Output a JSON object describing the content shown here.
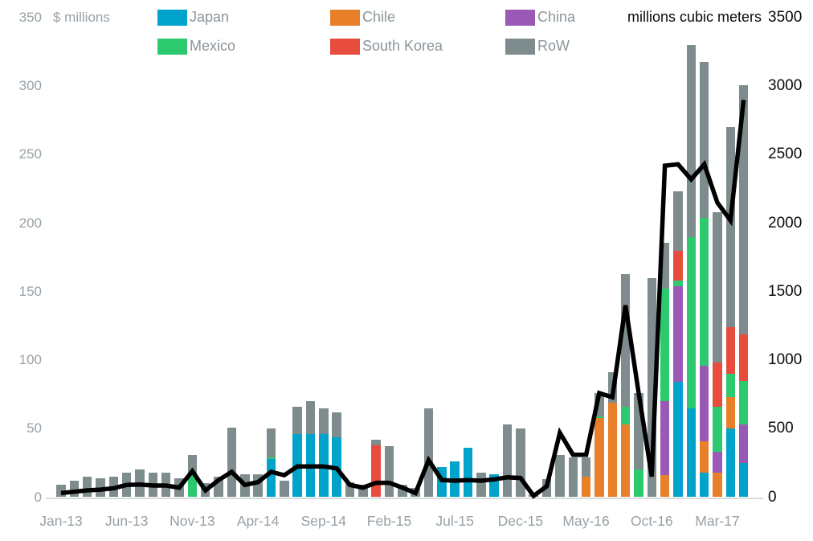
{
  "chart_data": {
    "type": "combo-stacked-bar-line",
    "left_axis": {
      "label": "$ millions",
      "min": 0,
      "max": 350,
      "tick_step": 50
    },
    "right_axis": {
      "label": "millions cubic meters",
      "min": 0,
      "max": 3500,
      "tick_step": 500
    },
    "series_order": [
      "japan",
      "chile",
      "china",
      "mexico",
      "south_korea",
      "row"
    ],
    "legend": [
      {
        "id": "japan",
        "label": "Japan",
        "color": "#00a3c9"
      },
      {
        "id": "chile",
        "label": "Chile",
        "color": "#e8802a"
      },
      {
        "id": "china",
        "label": "China",
        "color": "#9b59b6"
      },
      {
        "id": "mexico",
        "label": "Mexico",
        "color": "#2dc96e"
      },
      {
        "id": "south_korea",
        "label": "South Korea",
        "color": "#e74c3c"
      },
      {
        "id": "row",
        "label": "RoW",
        "color": "#7f8c8d"
      }
    ],
    "line_series": {
      "name": "volume",
      "axis": "right",
      "color": "#000000"
    },
    "x_tick_labels": [
      "Jan-13",
      "Jun-13",
      "Nov-13",
      "Apr-14",
      "Sep-14",
      "Feb-15",
      "Jul-15",
      "Dec-15",
      "May-16",
      "Oct-16",
      "Mar-17"
    ],
    "months": [
      {
        "label": "Jan-13",
        "row": 9,
        "line": 30
      },
      {
        "label": "Feb-13",
        "row": 12,
        "line": 40
      },
      {
        "label": "Mar-13",
        "row": 15,
        "line": 50
      },
      {
        "label": "Apr-13",
        "row": 14,
        "line": 55
      },
      {
        "label": "May-13",
        "row": 15,
        "line": 65
      },
      {
        "label": "Jun-13",
        "row": 18,
        "line": 90
      },
      {
        "label": "Jul-13",
        "row": 20,
        "line": 92
      },
      {
        "label": "Aug-13",
        "row": 18,
        "line": 85
      },
      {
        "label": "Sep-13",
        "row": 18,
        "line": 85
      },
      {
        "label": "Oct-13",
        "row": 14,
        "line": 70
      },
      {
        "label": "Nov-13",
        "mexico": 18,
        "row": 13,
        "line": 190
      },
      {
        "label": "Dec-13",
        "row": 10,
        "line": 50
      },
      {
        "label": "Jan-14",
        "row": 15,
        "line": 125
      },
      {
        "label": "Feb-14",
        "row": 51,
        "line": 185
      },
      {
        "label": "Mar-14",
        "row": 17,
        "line": 90
      },
      {
        "label": "Apr-14",
        "row": 17,
        "line": 110
      },
      {
        "label": "May-14",
        "japan": 28,
        "mexico": 1,
        "row": 21,
        "line": 185
      },
      {
        "label": "Jun-14",
        "row": 12,
        "line": 160
      },
      {
        "label": "Jul-14",
        "japan": 46,
        "row": 20,
        "line": 225
      },
      {
        "label": "Aug-14",
        "japan": 46,
        "row": 24,
        "line": 225
      },
      {
        "label": "Sep-14",
        "japan": 46,
        "row": 19,
        "line": 225
      },
      {
        "label": "Oct-14",
        "japan": 44,
        "row": 18,
        "line": 210
      },
      {
        "label": "Nov-14",
        "row": 11,
        "line": 90
      },
      {
        "label": "Dec-14",
        "row": 9,
        "line": 70
      },
      {
        "label": "Jan-15",
        "south_korea": 38,
        "row": 4,
        "line": 105
      },
      {
        "label": "Feb-15",
        "row": 37,
        "line": 105
      },
      {
        "label": "Mar-15",
        "row": 9,
        "line": 70
      },
      {
        "label": "Apr-15",
        "row": 7,
        "line": 30
      },
      {
        "label": "May-15",
        "row": 65,
        "line": 270
      },
      {
        "label": "Jun-15",
        "japan": 22,
        "line": 125
      },
      {
        "label": "Jul-15",
        "japan": 26,
        "line": 120
      },
      {
        "label": "Aug-15",
        "japan": 36,
        "line": 125
      },
      {
        "label": "Sep-15",
        "row": 18,
        "line": 120
      },
      {
        "label": "Oct-15",
        "japan": 17,
        "line": 130
      },
      {
        "label": "Nov-15",
        "row": 53,
        "line": 145
      },
      {
        "label": "Dec-15",
        "row": 50,
        "line": 140
      },
      {
        "label": "Jan-16",
        "row": 2,
        "line": 10
      },
      {
        "label": "Feb-16",
        "row": 13,
        "line": 80
      },
      {
        "label": "Mar-16",
        "row": 31,
        "line": 470
      },
      {
        "label": "Apr-16",
        "row": 29,
        "line": 310
      },
      {
        "label": "May-16",
        "chile": 15,
        "row": 14,
        "line": 310
      },
      {
        "label": "Jun-16",
        "chile": 58,
        "mexico": 1,
        "row": 17,
        "line": 760
      },
      {
        "label": "Jul-16",
        "chile": 69,
        "row": 22,
        "line": 730
      },
      {
        "label": "Aug-16",
        "chile": 53,
        "mexico": 13,
        "row": 97,
        "line": 1400
      },
      {
        "label": "Sep-16",
        "mexico": 20,
        "row": 56,
        "line": 760
      },
      {
        "label": "Oct-16",
        "row": 160,
        "line": 150
      },
      {
        "label": "Nov-16",
        "chile": 16,
        "china": 54,
        "mexico": 82,
        "row": 34,
        "line": 2420
      },
      {
        "label": "Dec-16",
        "japan": 84,
        "china": 70,
        "mexico": 4,
        "south_korea": 22,
        "row": 43,
        "line": 2430
      },
      {
        "label": "Jan-17",
        "japan": 65,
        "mexico": 125,
        "row": 140,
        "line": 2320
      },
      {
        "label": "Feb-17",
        "japan": 18,
        "chile": 23,
        "china": 55,
        "mexico": 108,
        "row": 114,
        "line": 2430
      },
      {
        "label": "Mar-17",
        "chile": 18,
        "china": 15,
        "mexico": 33,
        "south_korea": 32,
        "row": 110,
        "line": 2150
      },
      {
        "label": "Apr-17",
        "japan": 50,
        "chile": 23,
        "mexico": 17,
        "south_korea": 34,
        "row": 146,
        "line": 2020
      },
      {
        "label": "May-17",
        "japan": 25,
        "china": 28,
        "mexico": 32,
        "south_korea": 34,
        "row": 182,
        "line": 2900
      }
    ]
  }
}
